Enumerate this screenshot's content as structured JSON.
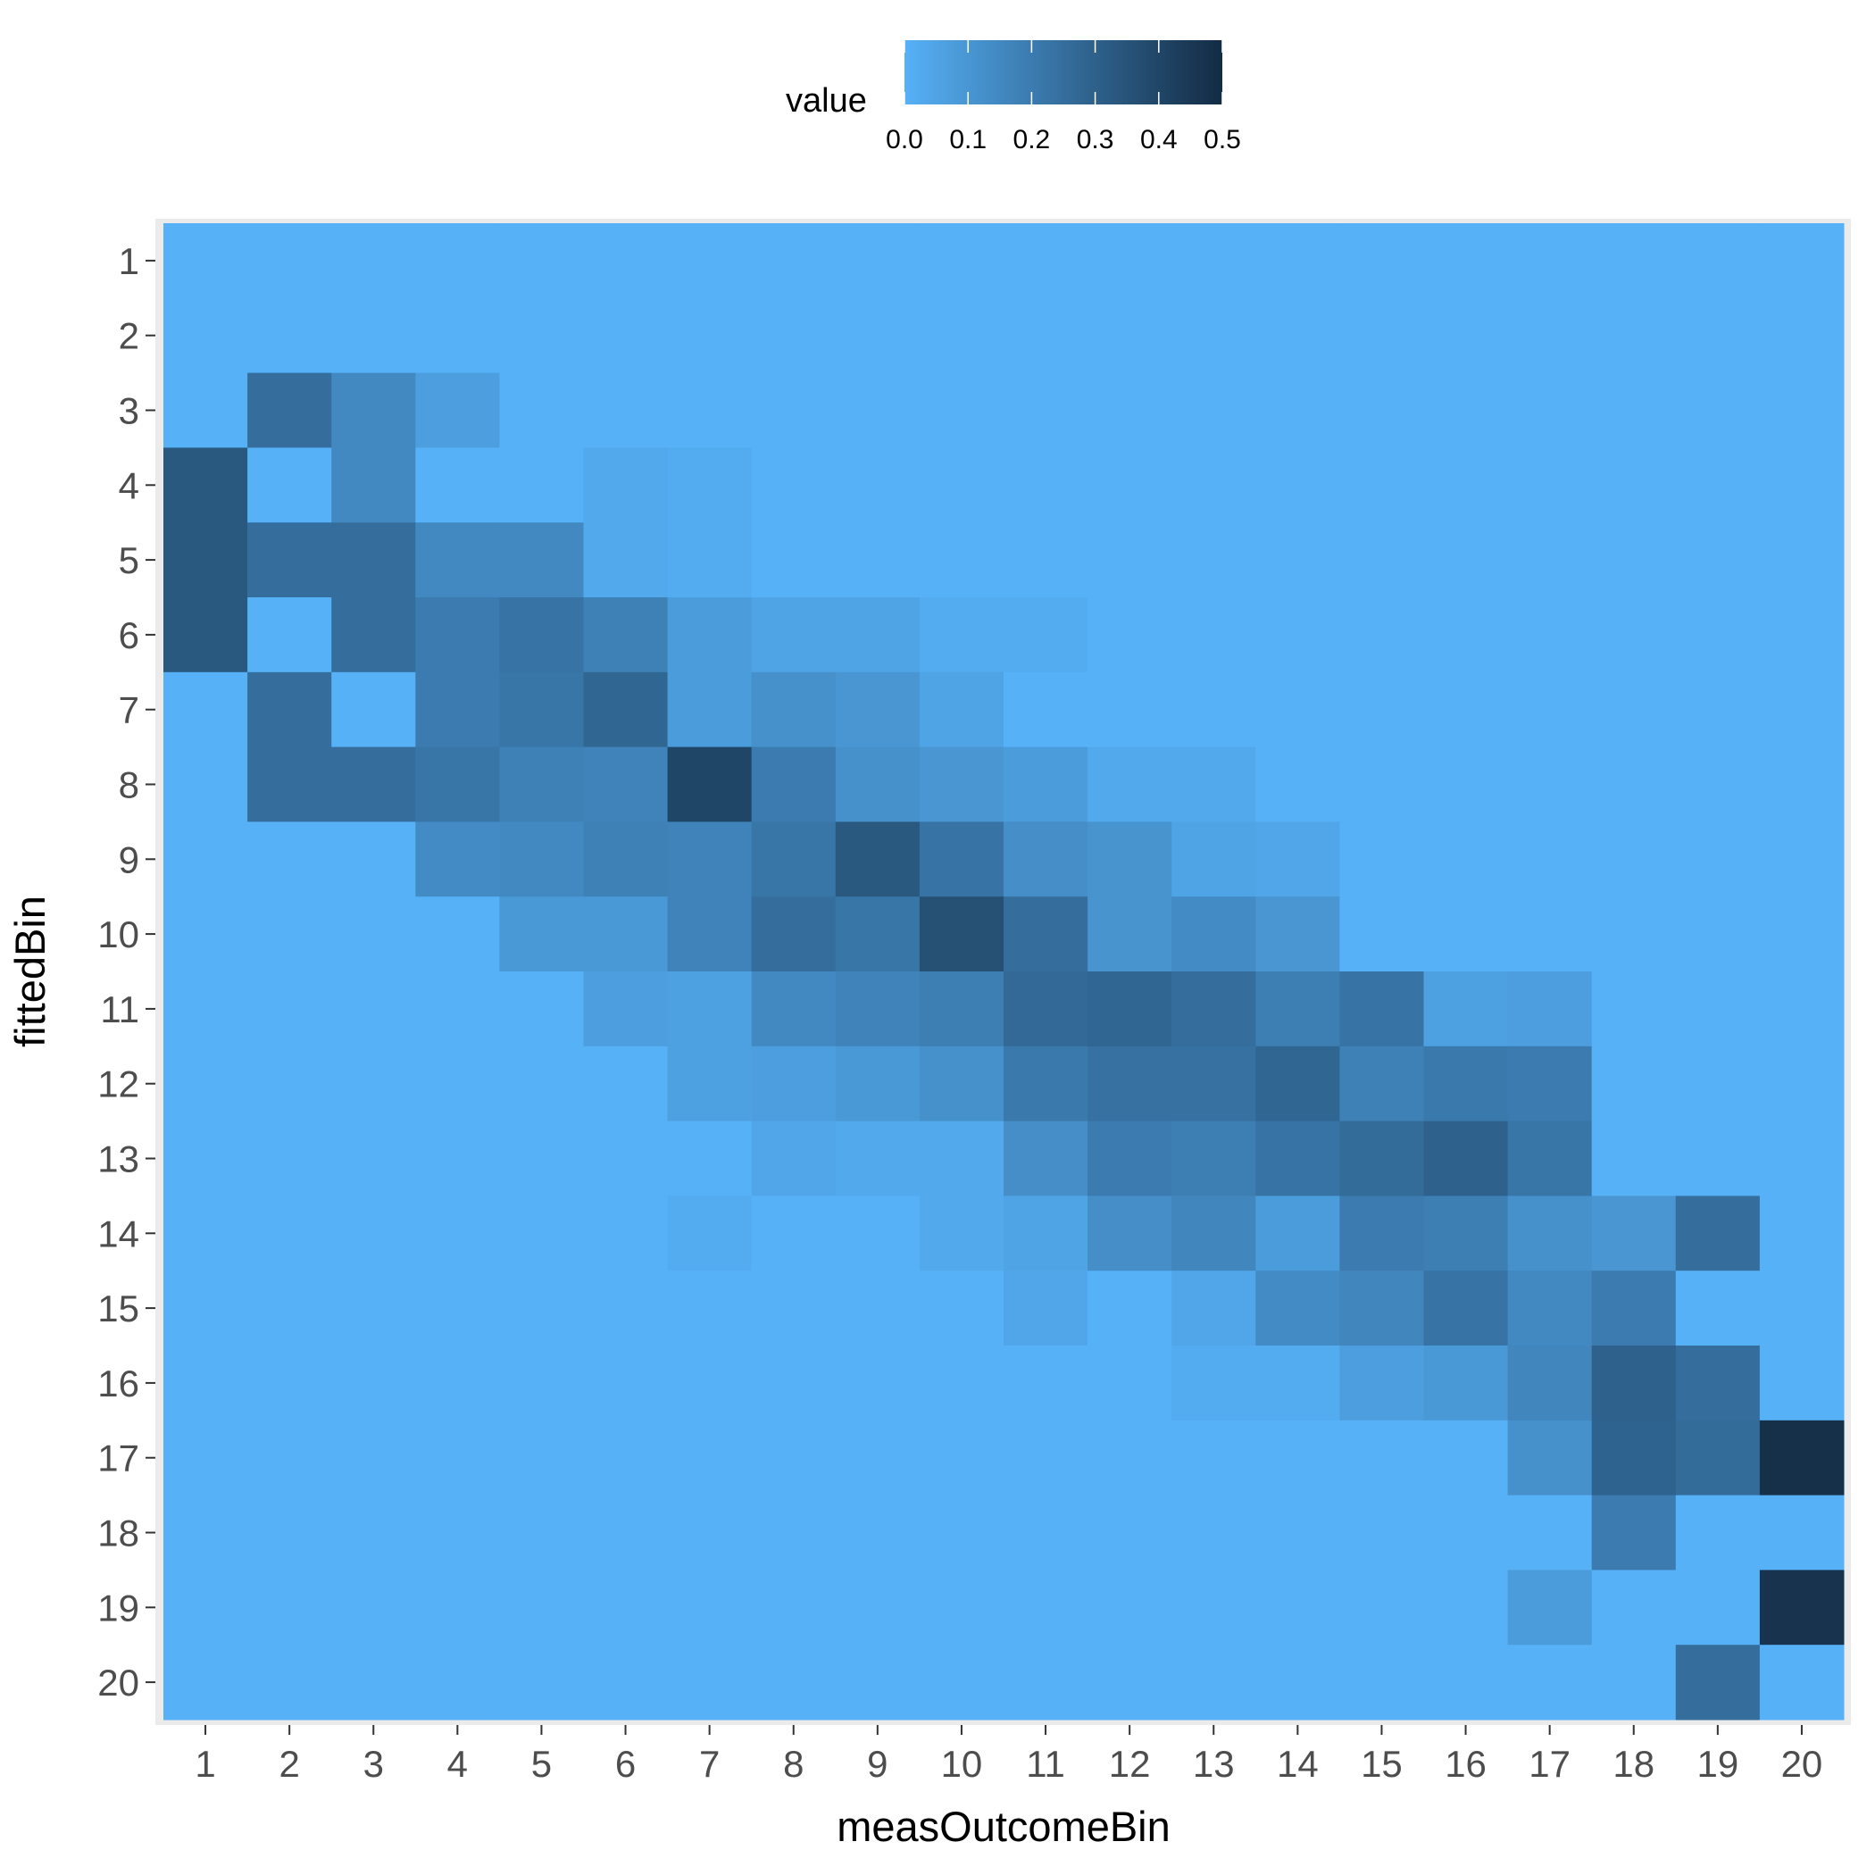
{
  "chart_data": {
    "type": "heatmap",
    "xlabel": "measOutcomeBin",
    "ylabel": "fittedBin",
    "x_categories": [
      "1",
      "2",
      "3",
      "4",
      "5",
      "6",
      "7",
      "8",
      "9",
      "10",
      "11",
      "12",
      "13",
      "14",
      "15",
      "16",
      "17",
      "18",
      "19",
      "20"
    ],
    "y_categories": [
      "1",
      "2",
      "3",
      "4",
      "5",
      "6",
      "7",
      "8",
      "9",
      "10",
      "11",
      "12",
      "13",
      "14",
      "15",
      "16",
      "17",
      "18",
      "19",
      "20"
    ],
    "legend": {
      "title": "value",
      "ticks": [
        "0.0",
        "0.1",
        "0.2",
        "0.3",
        "0.4",
        "0.5"
      ],
      "range": [
        0,
        0.5
      ],
      "position": "top"
    },
    "colors": {
      "low": "#56B1F7",
      "high": "#132B43",
      "panel_bg": "#EBEBEB"
    },
    "values": [
      [
        0,
        0,
        0,
        0,
        0,
        0,
        0,
        0,
        0,
        0,
        0,
        0,
        0,
        0,
        0,
        0,
        0,
        0,
        0,
        0
      ],
      [
        0,
        0,
        0,
        0,
        0,
        0,
        0,
        0,
        0,
        0,
        0,
        0,
        0,
        0,
        0,
        0,
        0,
        0,
        0,
        0
      ],
      [
        0,
        0.25,
        0.15,
        0.07,
        0,
        0,
        0,
        0,
        0,
        0,
        0,
        0,
        0,
        0,
        0,
        0,
        0,
        0,
        0,
        0
      ],
      [
        0.33,
        0,
        0.15,
        0,
        0,
        0.03,
        0.02,
        0,
        0,
        0,
        0,
        0,
        0,
        0,
        0,
        0,
        0,
        0,
        0,
        0
      ],
      [
        0.33,
        0.25,
        0.25,
        0.15,
        0.15,
        0.03,
        0.02,
        0,
        0,
        0,
        0,
        0,
        0,
        0,
        0,
        0,
        0,
        0,
        0,
        0
      ],
      [
        0.33,
        0,
        0.25,
        0.2,
        0.23,
        0.18,
        0.08,
        0.05,
        0.05,
        0.02,
        0.02,
        0,
        0,
        0,
        0,
        0,
        0,
        0,
        0,
        0
      ],
      [
        0,
        0.25,
        0,
        0.2,
        0.22,
        0.28,
        0.08,
        0.12,
        0.1,
        0.05,
        0,
        0,
        0,
        0,
        0,
        0,
        0,
        0,
        0,
        0
      ],
      [
        0,
        0.25,
        0.25,
        0.22,
        0.18,
        0.17,
        0.4,
        0.2,
        0.12,
        0.1,
        0.08,
        0.03,
        0.03,
        0,
        0,
        0,
        0,
        0,
        0,
        0
      ],
      [
        0,
        0,
        0,
        0.14,
        0.15,
        0.18,
        0.17,
        0.22,
        0.33,
        0.23,
        0.13,
        0.11,
        0.05,
        0.04,
        0,
        0,
        0,
        0,
        0,
        0
      ],
      [
        0,
        0,
        0,
        0,
        0.09,
        0.09,
        0.17,
        0.25,
        0.22,
        0.36,
        0.25,
        0.11,
        0.14,
        0.1,
        0,
        0,
        0,
        0,
        0,
        0
      ],
      [
        0,
        0,
        0,
        0,
        0,
        0.07,
        0.06,
        0.15,
        0.17,
        0.19,
        0.27,
        0.28,
        0.25,
        0.19,
        0.23,
        0.06,
        0.07,
        0,
        0,
        0
      ],
      [
        0,
        0,
        0,
        0,
        0,
        0,
        0.06,
        0.07,
        0.09,
        0.12,
        0.21,
        0.24,
        0.24,
        0.28,
        0.18,
        0.21,
        0.2,
        0,
        0,
        0
      ],
      [
        0,
        0,
        0,
        0,
        0,
        0,
        0,
        0.04,
        0.03,
        0.03,
        0.13,
        0.2,
        0.19,
        0.23,
        0.26,
        0.3,
        0.22,
        0,
        0,
        0
      ],
      [
        0,
        0,
        0,
        0,
        0,
        0,
        0.02,
        0,
        0,
        0.03,
        0.05,
        0.13,
        0.16,
        0.08,
        0.2,
        0.19,
        0.12,
        0.1,
        0.25,
        0
      ],
      [
        0,
        0,
        0,
        0,
        0,
        0,
        0,
        0,
        0,
        0,
        0.04,
        0,
        0.04,
        0.14,
        0.16,
        0.23,
        0.15,
        0.2,
        0,
        0
      ],
      [
        0,
        0,
        0,
        0,
        0,
        0,
        0,
        0,
        0,
        0,
        0,
        0,
        0.02,
        0.02,
        0.07,
        0.09,
        0.16,
        0.3,
        0.25,
        0
      ],
      [
        0,
        0,
        0,
        0,
        0,
        0,
        0,
        0,
        0,
        0,
        0,
        0,
        0,
        0,
        0,
        0,
        0.12,
        0.29,
        0.26,
        0.48
      ],
      [
        0,
        0,
        0,
        0,
        0,
        0,
        0,
        0,
        0,
        0,
        0,
        0,
        0,
        0,
        0,
        0,
        0,
        0.2,
        0,
        0
      ],
      [
        0,
        0,
        0,
        0,
        0,
        0,
        0,
        0,
        0,
        0,
        0,
        0,
        0,
        0,
        0,
        0,
        0.08,
        0,
        0,
        0.47
      ],
      [
        0,
        0,
        0,
        0,
        0,
        0,
        0,
        0,
        0,
        0,
        0,
        0,
        0,
        0,
        0,
        0,
        0,
        0,
        0.25,
        0
      ]
    ]
  }
}
